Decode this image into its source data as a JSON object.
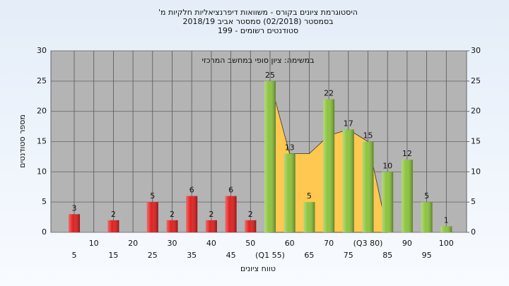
{
  "chart_data": {
    "type": "bar",
    "title": [
      "היסטוגרמת ציונים בקורס - משוואות דיפרנציאליות חלקיות מ'",
      "בסמסטר (02/2018) סמסטר אביב 2018/19",
      "סטודנטים רשומים - 199"
    ],
    "annotation": "במשימה: ציון סופי במחשב המרכזי",
    "x_label": "טווח ציונים",
    "y_label": "מספר סטודנטים",
    "categories": [
      "5",
      "10",
      "15",
      "20",
      "25",
      "30",
      "35",
      "40",
      "45",
      "50",
      "(Q1 55)",
      "60",
      "65",
      "70",
      "75",
      "(Q3 80)",
      "85",
      "90",
      "95",
      "100"
    ],
    "values": [
      3,
      0,
      2,
      0,
      5,
      2,
      6,
      2,
      6,
      2,
      25,
      13,
      5,
      22,
      17,
      15,
      10,
      12,
      5,
      1
    ],
    "colors": [
      "#e02020",
      "#e02020",
      "#e02020",
      "#e02020",
      "#e02020",
      "#e02020",
      "#e02020",
      "#e02020",
      "#e02020",
      "#e02020",
      "#8cc43c",
      "#8cc43c",
      "#8cc43c",
      "#8cc43c",
      "#8cc43c",
      "#8cc43c",
      "#8cc43c",
      "#8cc43c",
      "#8cc43c",
      "#8cc43c"
    ],
    "area": {
      "color": "#ffc850",
      "values": [
        null,
        null,
        null,
        null,
        null,
        null,
        null,
        null,
        null,
        null,
        25,
        13,
        13,
        16,
        17,
        15,
        0,
        null,
        null,
        null
      ]
    },
    "ylim": [
      0,
      30
    ],
    "yticks": [
      0,
      5,
      10,
      15,
      20,
      25,
      30
    ],
    "y2lim": [
      0,
      30
    ],
    "y2ticks": [
      0,
      5,
      10,
      15,
      20,
      25,
      30
    ],
    "grid": true
  }
}
